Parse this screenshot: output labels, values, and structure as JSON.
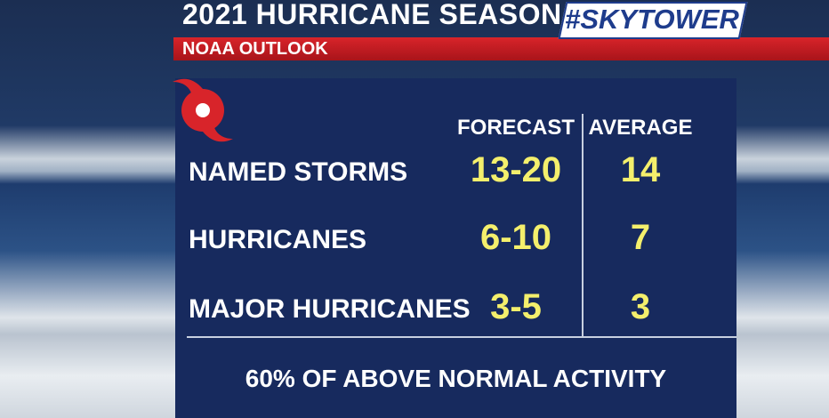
{
  "header": {
    "title": "2021 HURRICANE SEASON",
    "logo": "#SKYTOWER",
    "subtitle": "NOAA OUTLOOK"
  },
  "table": {
    "columns": [
      "FORECAST",
      "AVERAGE"
    ],
    "rows": [
      [
        "NAMED STORMS",
        "13-20",
        "14"
      ],
      [
        "HURRICANES",
        "6-10",
        "7"
      ],
      [
        "MAJOR HURRICANES",
        "3-5",
        "3"
      ]
    ]
  },
  "footer": "60% OF ABOVE NORMAL ACTIVITY"
}
